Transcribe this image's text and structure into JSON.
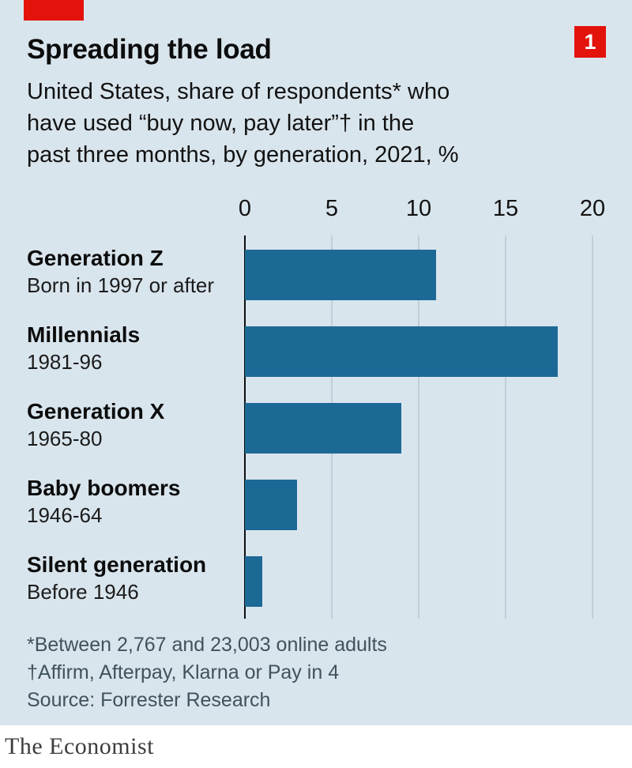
{
  "colors": {
    "background": "#d9e5ed",
    "accent_red": "#E3120B",
    "bar": "#1d6996",
    "grid": "#a8b7c1",
    "axis_line": "#0e0e0e"
  },
  "header": {
    "title": "Spreading the load",
    "panel_number": "1",
    "subtitle_lines": [
      "United States, share of respondents* who",
      "have used “buy now, pay later”† in the",
      "past three months, by generation, 2021, %"
    ]
  },
  "chart_data": {
    "type": "bar",
    "orientation": "horizontal",
    "title": "Spreading the load",
    "subtitle": "United States, share of respondents* who have used “buy now, pay later”† in the past three months, by generation, 2021, %",
    "xlim": [
      0,
      20
    ],
    "x_ticks": [
      "0",
      "5",
      "10",
      "15",
      "20"
    ],
    "grid": true,
    "legend": false,
    "bar_color": "#1d6996",
    "categories": [
      "Generation Z",
      "Millennials",
      "Generation X",
      "Baby boomers",
      "Silent generation"
    ],
    "sublabels": [
      "Born in 1997 or after",
      "1981-96",
      "1965-80",
      "1946-64",
      "Before 1946"
    ],
    "values": [
      11,
      18,
      9,
      3,
      1
    ]
  },
  "footnotes": {
    "line1": "*Between 2,767 and 23,003 online adults",
    "line2": "†Affirm, Afterpay, Klarna or Pay in 4",
    "source": "Source: Forrester Research"
  },
  "brand": "The Economist"
}
